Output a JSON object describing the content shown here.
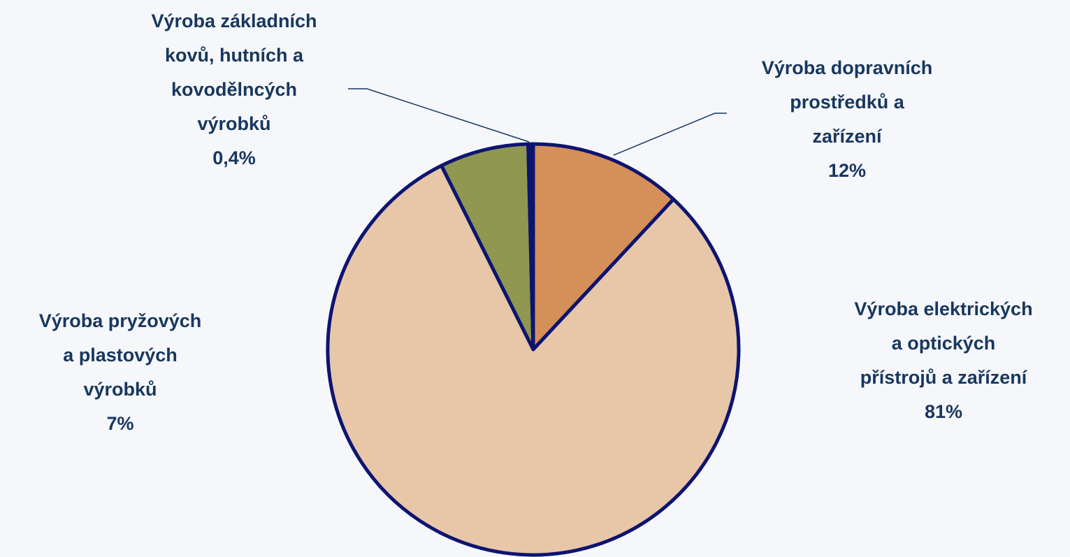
{
  "chart_data": {
    "type": "pie",
    "categories": [
      "Výroba dopravních\nprostředků a\nzařízení",
      "Výroba elektrických\na optických\npřístrojů a zařízení",
      "Výroba pryžových\na plastových\nvýrobků",
      "Výroba základních\nkovů, hutních a\nkovodělncých\nvýrobků"
    ],
    "values": [
      12,
      81,
      7,
      0.4
    ],
    "value_labels": [
      "12%",
      "81%",
      "7%",
      "0,4%"
    ],
    "colors": [
      "#d58f58",
      "#e8c6a8",
      "#8e9650",
      "#0d1470"
    ],
    "border_color": "#0d1470"
  }
}
